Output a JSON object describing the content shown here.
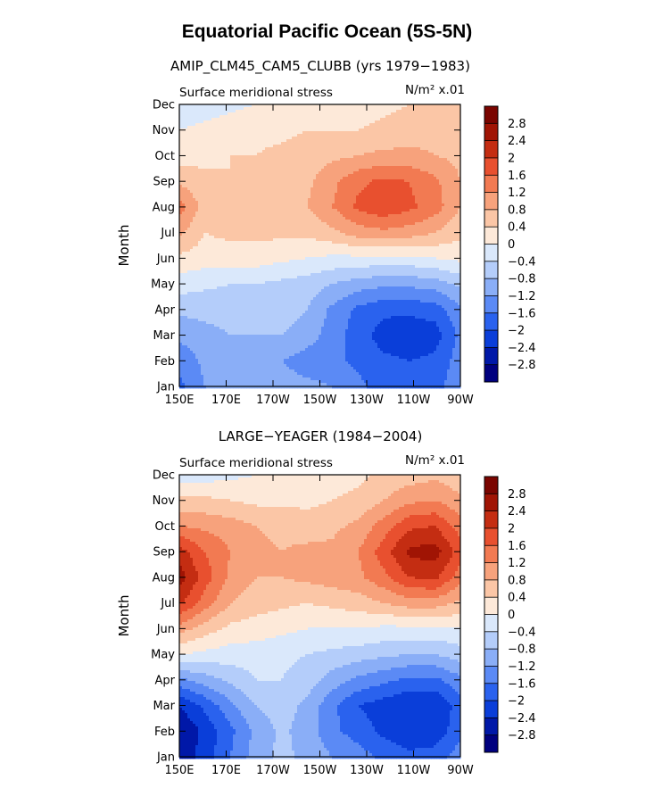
{
  "title": "Equatorial Pacific Ocean (5S-5N)",
  "chart_data": [
    {
      "type": "heatmap",
      "title": "AMIP_CLM45_CAM5_CLUBB (yrs 1979−1983)",
      "left_label": "Surface meridional stress",
      "right_label": "N/m² x.01",
      "ylabel": "Month",
      "xlabel": "",
      "x_ticks": [
        "150E",
        "170E",
        "170W",
        "150W",
        "130W",
        "110W",
        "90W"
      ],
      "y_ticks": [
        "Jan",
        "Feb",
        "Mar",
        "Apr",
        "May",
        "Jun",
        "Jul",
        "Aug",
        "Sep",
        "Oct",
        "Nov",
        "Dec"
      ],
      "colorbar_labels": [
        "2.8",
        "2.4",
        "2",
        "1.6",
        "1.2",
        "0.8",
        "0.4",
        "0",
        "−0.4",
        "−0.8",
        "−1.2",
        "−1.6",
        "−2",
        "−2.4",
        "−2.8"
      ],
      "grid": [
        [
          -1.7,
          -1.2,
          -1.1,
          -1.0,
          -1.0,
          -1.1,
          -1.2,
          -1.5,
          -1.8,
          -1.8,
          -1.7,
          -1.4
        ],
        [
          -1.5,
          -1.1,
          -1.0,
          -1.0,
          -1.2,
          -1.4,
          -1.5,
          -1.7,
          -1.9,
          -2.0,
          -1.9,
          -1.4
        ],
        [
          -1.1,
          -0.9,
          -0.8,
          -0.8,
          -0.8,
          -1.0,
          -1.4,
          -1.8,
          -2.2,
          -2.3,
          -2.2,
          -1.5
        ],
        [
          -0.7,
          -0.7,
          -0.7,
          -0.6,
          -0.6,
          -0.8,
          -1.3,
          -1.7,
          -1.9,
          -1.9,
          -1.8,
          -1.3
        ],
        [
          -0.2,
          -0.3,
          -0.4,
          -0.4,
          -0.5,
          -0.6,
          -0.8,
          -1.0,
          -1.1,
          -1.1,
          -1.0,
          -0.7
        ],
        [
          0.3,
          0.2,
          0.2,
          0.2,
          0.1,
          0.0,
          -0.1,
          -0.1,
          -0.1,
          -0.1,
          0.0,
          0.1
        ],
        [
          0.9,
          0.4,
          0.5,
          0.5,
          0.5,
          0.5,
          0.7,
          1.0,
          1.1,
          1.0,
          0.8,
          0.5
        ],
        [
          1.4,
          0.6,
          0.5,
          0.6,
          0.7,
          0.8,
          1.2,
          1.7,
          1.9,
          1.7,
          1.4,
          0.8
        ],
        [
          0.7,
          0.5,
          0.4,
          0.5,
          0.6,
          0.7,
          1.1,
          1.5,
          1.7,
          1.6,
          1.3,
          0.8
        ],
        [
          0.2,
          0.3,
          0.4,
          0.4,
          0.5,
          0.6,
          0.7,
          0.8,
          0.9,
          0.9,
          0.8,
          0.7
        ],
        [
          0.0,
          0.1,
          0.2,
          0.3,
          0.3,
          0.4,
          0.4,
          0.4,
          0.5,
          0.6,
          0.7,
          0.6
        ],
        [
          -0.3,
          -0.2,
          -0.1,
          0.0,
          0.1,
          0.1,
          0.1,
          0.2,
          0.3,
          0.4,
          0.5,
          0.4
        ]
      ]
    },
    {
      "type": "heatmap",
      "title": "LARGE−YEAGER (1984−2004)",
      "left_label": "Surface meridional stress",
      "right_label": "N/m² x.01",
      "ylabel": "Month",
      "xlabel": "",
      "x_ticks": [
        "150E",
        "170E",
        "170W",
        "150W",
        "130W",
        "110W",
        "90W"
      ],
      "y_ticks": [
        "Jan",
        "Feb",
        "Mar",
        "Apr",
        "May",
        "Jun",
        "Jul",
        "Aug",
        "Sep",
        "Oct",
        "Nov",
        "Dec"
      ],
      "colorbar_labels": [
        "2.8",
        "2.4",
        "2",
        "1.6",
        "1.2",
        "0.8",
        "0.4",
        "0",
        "−0.4",
        "−0.8",
        "−1.2",
        "−1.6",
        "−2",
        "−2.4",
        "−2.8"
      ],
      "grid": [
        [
          -2.7,
          -2.2,
          -1.6,
          -1.0,
          -0.7,
          -0.9,
          -1.2,
          -1.4,
          -1.7,
          -1.9,
          -1.8,
          -1.4
        ],
        [
          -2.8,
          -2.3,
          -1.7,
          -1.1,
          -0.7,
          -1.0,
          -1.5,
          -1.8,
          -2.1,
          -2.3,
          -2.3,
          -1.7
        ],
        [
          -2.4,
          -1.9,
          -1.3,
          -0.8,
          -0.6,
          -0.9,
          -1.5,
          -2.0,
          -2.2,
          -2.4,
          -2.4,
          -1.8
        ],
        [
          -1.3,
          -1.0,
          -0.7,
          -0.4,
          -0.4,
          -0.6,
          -1.0,
          -1.3,
          -1.5,
          -1.7,
          -1.7,
          -1.3
        ],
        [
          0.0,
          -0.1,
          -0.2,
          -0.2,
          -0.3,
          -0.4,
          -0.5,
          -0.6,
          -0.7,
          -0.8,
          -0.8,
          -0.6
        ],
        [
          1.0,
          0.6,
          0.3,
          0.2,
          0.1,
          0.0,
          0.0,
          0.0,
          -0.1,
          -0.1,
          -0.1,
          0.0
        ],
        [
          2.1,
          1.4,
          0.8,
          0.6,
          0.5,
          0.4,
          0.5,
          0.6,
          0.8,
          1.0,
          1.0,
          0.7
        ],
        [
          2.6,
          1.8,
          1.1,
          0.8,
          0.8,
          0.9,
          1.0,
          1.1,
          1.5,
          2.0,
          2.1,
          1.4
        ],
        [
          2.2,
          1.6,
          1.2,
          0.9,
          0.8,
          0.9,
          0.9,
          1.2,
          1.8,
          2.5,
          2.6,
          1.8
        ],
        [
          1.2,
          1.1,
          1.0,
          0.8,
          0.7,
          0.6,
          0.7,
          0.9,
          1.4,
          1.9,
          2.0,
          1.4
        ],
        [
          0.5,
          0.5,
          0.4,
          0.3,
          0.3,
          0.3,
          0.4,
          0.5,
          0.8,
          1.1,
          1.2,
          0.9
        ],
        [
          -0.2,
          -0.2,
          -0.1,
          0.0,
          0.1,
          0.2,
          0.2,
          0.3,
          0.5,
          0.6,
          0.7,
          0.5
        ]
      ]
    }
  ],
  "palette": [
    "#00007f",
    "#0018a8",
    "#0a3ed9",
    "#2a62ee",
    "#5b8af5",
    "#8aaef7",
    "#b4cdfa",
    "#dae8fb",
    "#fde9d9",
    "#fbc6a6",
    "#f7a27c",
    "#f27a52",
    "#e8502f",
    "#c42d12",
    "#a01404",
    "#7a0500"
  ]
}
